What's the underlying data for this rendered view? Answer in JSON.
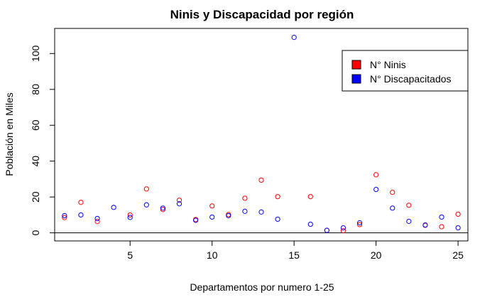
{
  "chart_data": {
    "type": "scatter",
    "title": "Ninis y Discapacidad por región",
    "xlabel": "Departamentos por numero 1-25",
    "ylabel": "Población en Miles",
    "xlim": [
      0.4,
      25.6
    ],
    "ylim": [
      -4.5,
      114
    ],
    "x_ticks": [
      5,
      10,
      15,
      20,
      25
    ],
    "y_ticks": [
      0,
      20,
      40,
      60,
      80,
      100
    ],
    "hline": 0,
    "grid": false,
    "legend": {
      "position": "top-right"
    },
    "x": [
      1,
      2,
      3,
      4,
      5,
      6,
      7,
      8,
      9,
      10,
      11,
      12,
      13,
      14,
      15,
      16,
      17,
      18,
      19,
      20,
      21,
      22,
      23,
      24,
      25
    ],
    "series": [
      {
        "name": "N° Ninis",
        "color": "#ff0000",
        "values": [
          8.5,
          17,
          6.3,
          null,
          10,
          24.5,
          13,
          18.2,
          7.4,
          15,
          10.2,
          19.3,
          29.4,
          20.2,
          null,
          20.2,
          1.4,
          1.2,
          4.6,
          32.4,
          22.6,
          15.4,
          4.2,
          3.4,
          10.4
        ]
      },
      {
        "name": "N° Discapacitados",
        "color": "#0000ff",
        "values": [
          9.6,
          10,
          8,
          14.2,
          8.6,
          15.6,
          13.8,
          16.2,
          7,
          8.8,
          9.6,
          12,
          11.6,
          7.6,
          109,
          4.8,
          1.4,
          2.8,
          5.6,
          24.2,
          13.8,
          6.4,
          4.4,
          8.8,
          2.8
        ]
      }
    ]
  }
}
